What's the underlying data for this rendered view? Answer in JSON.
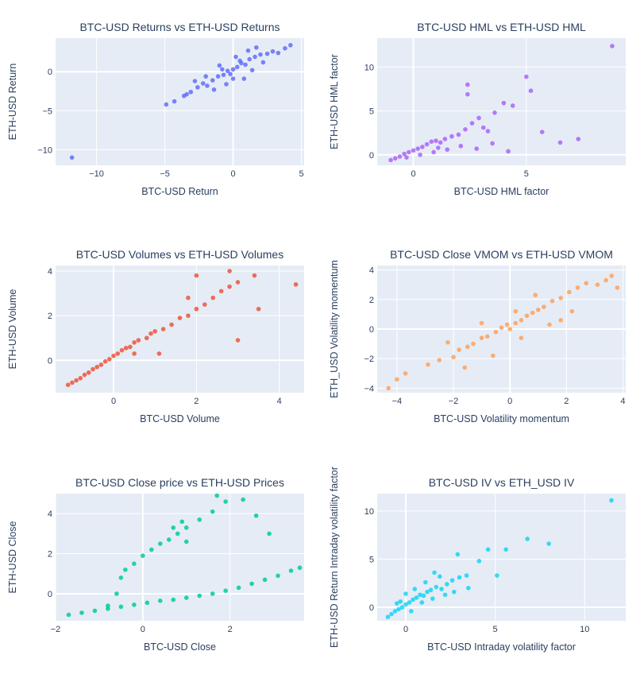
{
  "figure": {
    "background": "#ffffff",
    "plot_bg": "#e5ecf6",
    "grid_color": "#ffffff",
    "text_color": "#2a3f5f"
  },
  "chart_data": [
    {
      "type": "scatter",
      "title": "BTC-USD Returns vs ETH-USD Returns",
      "xlabel": "BTC-USD Return",
      "ylabel": "ETH-USD Return",
      "xlim": [
        -13,
        5.2
      ],
      "ylim": [
        -12,
        4.3
      ],
      "xticks": [
        -10,
        -5,
        0,
        5
      ],
      "yticks": [
        -10,
        -5,
        0
      ],
      "color": "#636efa",
      "points": [
        [
          -11.8,
          -11.0
        ],
        [
          -4.9,
          -4.2
        ],
        [
          -4.3,
          -3.8
        ],
        [
          -3.6,
          -3.1
        ],
        [
          -3.1,
          -2.6
        ],
        [
          -2.6,
          -2.0
        ],
        [
          -2.2,
          -1.5
        ],
        [
          -1.9,
          -1.8
        ],
        [
          -1.5,
          -1.1
        ],
        [
          -1.1,
          -0.6
        ],
        [
          -0.7,
          -0.4
        ],
        [
          -0.4,
          0.1
        ],
        [
          -0.2,
          -0.3
        ],
        [
          0.0,
          0.3
        ],
        [
          0.3,
          0.6
        ],
        [
          0.6,
          1.1
        ],
        [
          0.9,
          0.9
        ],
        [
          1.2,
          1.6
        ],
        [
          1.6,
          1.9
        ],
        [
          2.0,
          2.2
        ],
        [
          2.5,
          2.3
        ],
        [
          2.9,
          2.6
        ],
        [
          3.3,
          2.4
        ],
        [
          3.8,
          3.0
        ],
        [
          4.2,
          3.4
        ],
        [
          -1.0,
          0.8
        ],
        [
          0.8,
          -0.9
        ],
        [
          -2.8,
          -1.2
        ],
        [
          1.4,
          0.2
        ],
        [
          0.2,
          1.9
        ],
        [
          -0.5,
          -1.6
        ],
        [
          1.1,
          2.7
        ],
        [
          -1.4,
          -2.3
        ],
        [
          0.5,
          1.4
        ],
        [
          -3.4,
          -2.9
        ],
        [
          0.0,
          -0.9
        ],
        [
          -0.8,
          0.3
        ],
        [
          2.2,
          1.2
        ],
        [
          1.7,
          3.1
        ],
        [
          -2.0,
          -0.6
        ]
      ]
    },
    {
      "type": "scatter",
      "title": "BTC-USD HML vs ETH-USD HML",
      "xlabel": "BTC-USD HML factor",
      "ylabel": "ETH-USD HML factor",
      "xlim": [
        -1.6,
        9.4
      ],
      "ylim": [
        -1.2,
        13.3
      ],
      "xticks": [
        0,
        5
      ],
      "yticks": [
        0,
        5,
        10
      ],
      "color": "#ab63fa",
      "points": [
        [
          -1.0,
          -0.6
        ],
        [
          -0.8,
          -0.4
        ],
        [
          -0.6,
          -0.2
        ],
        [
          -0.4,
          0.1
        ],
        [
          -0.2,
          0.3
        ],
        [
          0.0,
          0.5
        ],
        [
          0.2,
          0.7
        ],
        [
          0.4,
          0.9
        ],
        [
          0.6,
          1.2
        ],
        [
          0.8,
          1.5
        ],
        [
          1.0,
          1.6
        ],
        [
          1.2,
          1.4
        ],
        [
          1.4,
          1.8
        ],
        [
          1.7,
          2.1
        ],
        [
          2.0,
          2.3
        ],
        [
          2.3,
          2.9
        ],
        [
          2.6,
          3.6
        ],
        [
          2.9,
          4.2
        ],
        [
          3.1,
          3.1
        ],
        [
          3.6,
          4.8
        ],
        [
          4.0,
          5.9
        ],
        [
          4.4,
          5.6
        ],
        [
          5.0,
          8.9
        ],
        [
          5.2,
          7.3
        ],
        [
          5.7,
          2.6
        ],
        [
          6.5,
          1.4
        ],
        [
          7.3,
          1.8
        ],
        [
          8.8,
          12.4
        ],
        [
          2.4,
          8.0
        ],
        [
          0.9,
          0.3
        ],
        [
          1.5,
          0.6
        ],
        [
          2.1,
          1.0
        ],
        [
          2.8,
          0.7
        ],
        [
          3.5,
          1.3
        ],
        [
          4.2,
          0.4
        ],
        [
          0.3,
          0.0
        ],
        [
          -0.3,
          -0.3
        ],
        [
          1.1,
          0.8
        ],
        [
          2.4,
          6.9
        ],
        [
          3.3,
          2.7
        ]
      ]
    },
    {
      "type": "scatter",
      "title": "BTC-USD Volumes vs ETH-USD Volumes",
      "xlabel": "BTC-USD Volume",
      "ylabel": "ETH-USD Volume",
      "xlim": [
        -1.4,
        4.6
      ],
      "ylim": [
        -1.45,
        4.25
      ],
      "xticks": [
        0,
        2,
        4
      ],
      "yticks": [
        0,
        2,
        4
      ],
      "color": "#ef553b",
      "points": [
        [
          -1.1,
          -1.1
        ],
        [
          -1.0,
          -1.0
        ],
        [
          -0.9,
          -0.9
        ],
        [
          -0.8,
          -0.8
        ],
        [
          -0.7,
          -0.65
        ],
        [
          -0.6,
          -0.55
        ],
        [
          -0.5,
          -0.4
        ],
        [
          -0.4,
          -0.3
        ],
        [
          -0.3,
          -0.2
        ],
        [
          -0.2,
          -0.05
        ],
        [
          -0.1,
          0.05
        ],
        [
          0.0,
          0.2
        ],
        [
          0.1,
          0.3
        ],
        [
          0.2,
          0.45
        ],
        [
          0.3,
          0.55
        ],
        [
          0.4,
          0.6
        ],
        [
          0.5,
          0.8
        ],
        [
          0.6,
          0.9
        ],
        [
          0.8,
          1.0
        ],
        [
          0.9,
          1.2
        ],
        [
          1.0,
          1.3
        ],
        [
          1.2,
          1.4
        ],
        [
          1.4,
          1.6
        ],
        [
          1.6,
          1.9
        ],
        [
          1.8,
          2.0
        ],
        [
          2.0,
          2.3
        ],
        [
          2.2,
          2.5
        ],
        [
          2.4,
          2.8
        ],
        [
          2.6,
          3.1
        ],
        [
          2.8,
          3.3
        ],
        [
          3.0,
          3.5
        ],
        [
          3.4,
          3.8
        ],
        [
          4.4,
          3.4
        ],
        [
          2.8,
          4.0
        ],
        [
          3.5,
          2.3
        ],
        [
          3.0,
          0.9
        ],
        [
          2.0,
          3.8
        ],
        [
          1.8,
          2.8
        ],
        [
          1.1,
          0.3
        ],
        [
          0.5,
          0.3
        ]
      ]
    },
    {
      "type": "scatter",
      "title": "BTC-USD Close VMOM vs ETH-USD VMOM",
      "xlabel": "BTC-USD Volatility momentum",
      "ylabel": "ETH_USD Volatility momentum",
      "xlim": [
        -4.7,
        4.1
      ],
      "ylim": [
        -4.3,
        4.3
      ],
      "xticks": [
        -4,
        -2,
        0,
        2,
        4
      ],
      "yticks": [
        -4,
        -2,
        0,
        2,
        4
      ],
      "color": "#ffa15a",
      "points": [
        [
          -4.3,
          -4.0
        ],
        [
          -4.0,
          -3.4
        ],
        [
          -3.7,
          -3.0
        ],
        [
          -2.9,
          -2.4
        ],
        [
          -2.5,
          -2.1
        ],
        [
          -2.0,
          -1.9
        ],
        [
          -1.8,
          -1.4
        ],
        [
          -1.5,
          -1.2
        ],
        [
          -1.3,
          -1.0
        ],
        [
          -1.0,
          -0.6
        ],
        [
          -0.8,
          -0.5
        ],
        [
          -0.5,
          -0.2
        ],
        [
          -0.3,
          0.1
        ],
        [
          -0.1,
          0.3
        ],
        [
          0.0,
          0.0
        ],
        [
          0.2,
          0.4
        ],
        [
          0.4,
          0.6
        ],
        [
          0.6,
          0.9
        ],
        [
          0.8,
          1.1
        ],
        [
          1.0,
          1.3
        ],
        [
          1.2,
          1.5
        ],
        [
          1.5,
          1.9
        ],
        [
          1.8,
          2.1
        ],
        [
          2.1,
          2.5
        ],
        [
          2.4,
          2.8
        ],
        [
          2.7,
          3.1
        ],
        [
          3.1,
          3.0
        ],
        [
          3.4,
          3.3
        ],
        [
          3.6,
          3.6
        ],
        [
          3.8,
          2.8
        ],
        [
          -2.2,
          -0.9
        ],
        [
          -1.0,
          0.4
        ],
        [
          0.4,
          -0.6
        ],
        [
          1.4,
          0.3
        ],
        [
          2.2,
          1.2
        ],
        [
          -0.6,
          -1.8
        ],
        [
          0.9,
          2.3
        ],
        [
          -1.6,
          -2.6
        ],
        [
          0.2,
          1.2
        ],
        [
          1.8,
          0.6
        ]
      ]
    },
    {
      "type": "scatter",
      "title": "BTC-USD Close price vs ETH-USD Prices",
      "xlabel": "BTC-USD Close",
      "ylabel": "ETH-USD Close",
      "xlim": [
        -2.0,
        3.7
      ],
      "ylim": [
        -1.35,
        5.0
      ],
      "xticks": [
        -2,
        0,
        2
      ],
      "yticks": [
        0,
        2,
        4
      ],
      "color": "#00cc96",
      "points": [
        [
          -1.7,
          -1.05
        ],
        [
          -1.4,
          -0.95
        ],
        [
          -1.1,
          -0.85
        ],
        [
          -0.8,
          -0.75
        ],
        [
          -0.5,
          -0.65
        ],
        [
          -0.2,
          -0.55
        ],
        [
          0.1,
          -0.45
        ],
        [
          0.4,
          -0.35
        ],
        [
          0.7,
          -0.3
        ],
        [
          1.0,
          -0.2
        ],
        [
          1.3,
          -0.1
        ],
        [
          1.6,
          0.0
        ],
        [
          1.9,
          0.15
        ],
        [
          2.2,
          0.3
        ],
        [
          2.5,
          0.5
        ],
        [
          2.8,
          0.7
        ],
        [
          3.1,
          0.9
        ],
        [
          3.4,
          1.15
        ],
        [
          3.6,
          1.3
        ],
        [
          -0.8,
          -0.6
        ],
        [
          -0.6,
          0.0
        ],
        [
          -0.5,
          0.8
        ],
        [
          -0.4,
          1.2
        ],
        [
          -0.2,
          1.5
        ],
        [
          0.0,
          1.9
        ],
        [
          0.2,
          2.2
        ],
        [
          0.4,
          2.5
        ],
        [
          0.6,
          2.7
        ],
        [
          0.8,
          3.0
        ],
        [
          1.0,
          3.3
        ],
        [
          0.9,
          3.6
        ],
        [
          0.7,
          3.3
        ],
        [
          1.0,
          2.6
        ],
        [
          1.3,
          3.7
        ],
        [
          1.6,
          4.1
        ],
        [
          1.9,
          4.6
        ],
        [
          1.7,
          4.9
        ],
        [
          2.3,
          4.7
        ],
        [
          2.6,
          3.9
        ],
        [
          2.9,
          3.0
        ]
      ]
    },
    {
      "type": "scatter",
      "title": "BTC-USD IV vs ETH_USD IV",
      "xlabel": "BTC-USD Intraday volatility factor",
      "ylabel": "ETH-USD Return Intraday volatility factor",
      "xlim": [
        -1.6,
        12.3
      ],
      "ylim": [
        -1.4,
        11.8
      ],
      "xticks": [
        0,
        5,
        10
      ],
      "yticks": [
        0,
        5,
        10
      ],
      "color": "#19d3f3",
      "points": [
        [
          -1.0,
          -1.0
        ],
        [
          -0.8,
          -0.7
        ],
        [
          -0.6,
          -0.4
        ],
        [
          -0.4,
          -0.2
        ],
        [
          -0.2,
          0.0
        ],
        [
          0.0,
          0.3
        ],
        [
          0.2,
          0.5
        ],
        [
          0.4,
          0.8
        ],
        [
          0.6,
          1.0
        ],
        [
          0.8,
          1.3
        ],
        [
          1.0,
          1.2
        ],
        [
          1.2,
          1.6
        ],
        [
          1.4,
          1.8
        ],
        [
          1.7,
          2.1
        ],
        [
          2.0,
          1.9
        ],
        [
          2.3,
          2.4
        ],
        [
          2.6,
          2.8
        ],
        [
          3.0,
          3.1
        ],
        [
          3.4,
          3.3
        ],
        [
          2.9,
          5.5
        ],
        [
          4.1,
          4.8
        ],
        [
          4.6,
          6.0
        ],
        [
          5.1,
          3.3
        ],
        [
          5.6,
          6.0
        ],
        [
          6.8,
          7.1
        ],
        [
          8.0,
          6.6
        ],
        [
          11.5,
          11.1
        ],
        [
          0.5,
          1.9
        ],
        [
          1.1,
          2.6
        ],
        [
          1.9,
          3.2
        ],
        [
          -0.3,
          0.6
        ],
        [
          0.9,
          0.5
        ],
        [
          1.5,
          0.9
        ],
        [
          2.2,
          1.3
        ],
        [
          0.3,
          -0.4
        ],
        [
          -0.5,
          0.4
        ],
        [
          2.7,
          1.6
        ],
        [
          3.5,
          2.0
        ],
        [
          0.0,
          1.4
        ],
        [
          1.6,
          3.6
        ]
      ]
    }
  ]
}
